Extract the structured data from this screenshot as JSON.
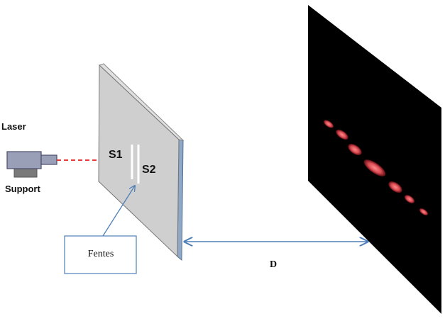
{
  "labels": {
    "laser": "Laser",
    "support": "Support",
    "slit1": "S1",
    "slit2": "S2",
    "slits_callout": "Fentes",
    "distance": "D"
  },
  "colors": {
    "background": "#ffffff",
    "panel_face": "#cfcfcf",
    "panel_edge": "#8ea8c8",
    "screen": "#000000",
    "laser_beam": "#e02020",
    "fringe": "#e8606a",
    "arrow": "#4f7fb8",
    "laser_body": "#9a9fb8",
    "laser_support": "#7a7a7a",
    "slit": "#ffffff"
  },
  "icons": {
    "laser": "laser-device-icon"
  }
}
